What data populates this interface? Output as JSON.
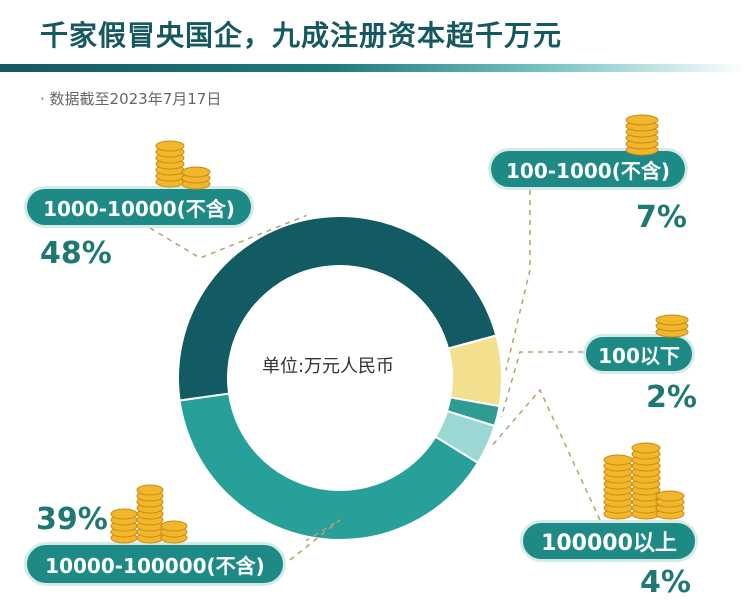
{
  "title": "千家假冒央国企，九成注册资本超千万元",
  "subtitle": "· 数据截至2023年7月17日",
  "chart_data": {
    "type": "pie",
    "variant": "donut",
    "center_label": "单位:万元人民币",
    "categories": [
      "1000-10000(不含)",
      "100-1000(不含)",
      "100以下",
      "100000以上",
      "10000-100000(不含)"
    ],
    "values": [
      48,
      7,
      2,
      4,
      39
    ],
    "labels": [
      "48%",
      "7%",
      "2%",
      "4%",
      "39%"
    ],
    "colors": [
      "#135b63",
      "#f2e08e",
      "#2f9c92",
      "#9cd8d3",
      "#27a09a"
    ],
    "legend": "callouts"
  },
  "callouts": [
    {
      "label": "1000-10000(不含)",
      "pct": "48%"
    },
    {
      "label": "100-1000(不含)",
      "pct": "7%"
    },
    {
      "label": "100以下",
      "pct": "2%"
    },
    {
      "label": "100000以上",
      "pct": "4%"
    },
    {
      "label": "10000-100000(不含)",
      "pct": "39%"
    }
  ],
  "icons": [
    "coin-stack-icon"
  ]
}
